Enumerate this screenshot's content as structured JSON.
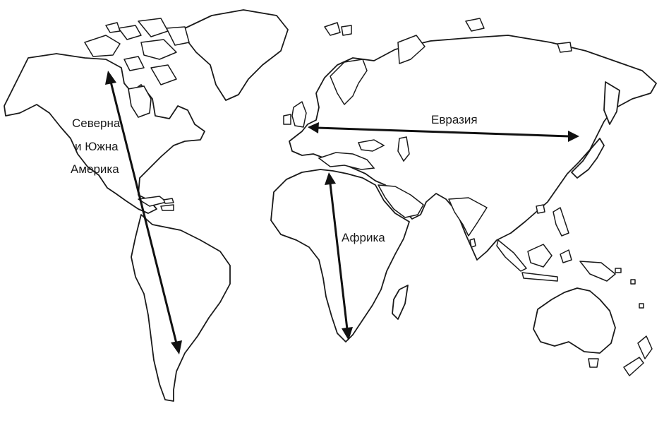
{
  "map": {
    "labels": {
      "americas_line1": "Северна",
      "americas_line2": "и Южна",
      "americas_line3": "Америка",
      "eurasia": "Евразия",
      "africa": "Африка"
    },
    "colors": {
      "land_fill": "#ffffff",
      "coastline": "#1a1a1a",
      "arrow": "#111111"
    }
  }
}
